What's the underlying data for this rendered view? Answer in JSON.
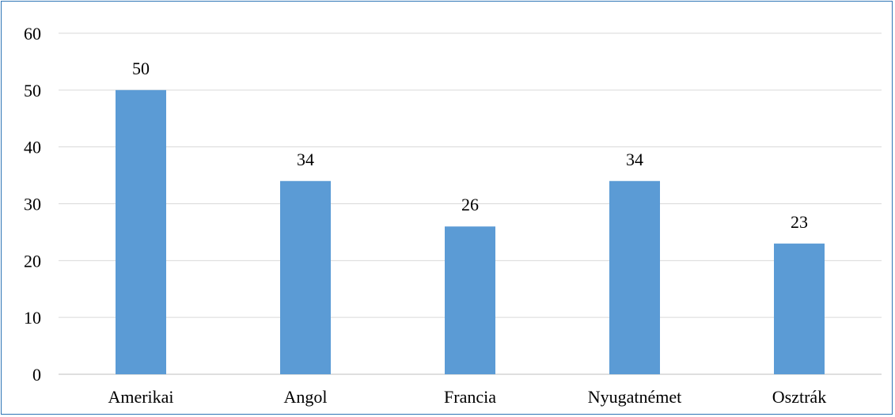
{
  "chart_data": {
    "type": "bar",
    "title": "",
    "xlabel": "",
    "ylabel": "",
    "categories": [
      "Amerikai",
      "Angol",
      "Francia",
      "Nyugatnémet",
      "Osztrák"
    ],
    "values": [
      50,
      34,
      26,
      34,
      23
    ],
    "data_labels": [
      "50",
      "34",
      "26",
      "34",
      "23"
    ],
    "ylim": [
      0,
      60
    ],
    "yticks": [
      0,
      10,
      20,
      30,
      40,
      50,
      60
    ],
    "ytick_labels": [
      "0",
      "10",
      "20",
      "30",
      "40",
      "50",
      "60"
    ],
    "grid": true,
    "legend": "none",
    "colors": {
      "bar": "#5B9BD5",
      "grid": "#D9D9D9",
      "axis": "#BFBFBF",
      "border": "#2E75B6"
    }
  }
}
